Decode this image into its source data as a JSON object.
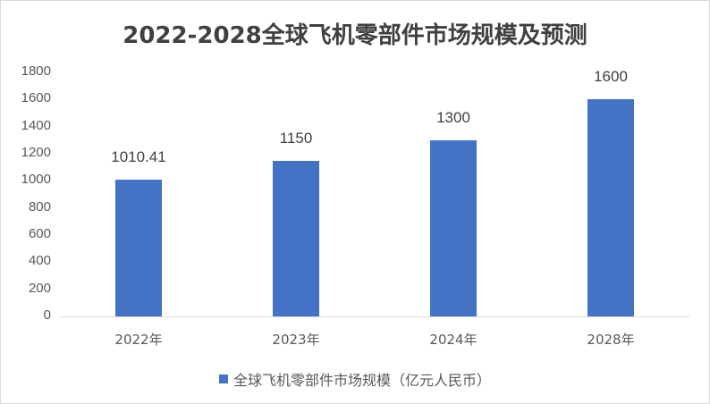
{
  "chart_data": {
    "type": "bar",
    "title": "2022-2028全球飞机零部件市场规模及预测",
    "categories": [
      "2022年",
      "2023年",
      "2024年",
      "2028年"
    ],
    "series": [
      {
        "name": "全球飞机零部件市场规模（亿元人民币）",
        "values": [
          1010.41,
          1150,
          1300,
          1600
        ],
        "color": "#4472c4"
      }
    ],
    "data_labels": [
      "1010.41",
      "1150",
      "1300",
      "1600"
    ],
    "xlabel": "",
    "ylabel": "",
    "ylim": [
      0,
      1800
    ],
    "yticks": [
      "0",
      "200",
      "400",
      "600",
      "800",
      "1000",
      "1200",
      "1400",
      "1600",
      "1800"
    ],
    "grid": false,
    "legend_position": "bottom"
  }
}
